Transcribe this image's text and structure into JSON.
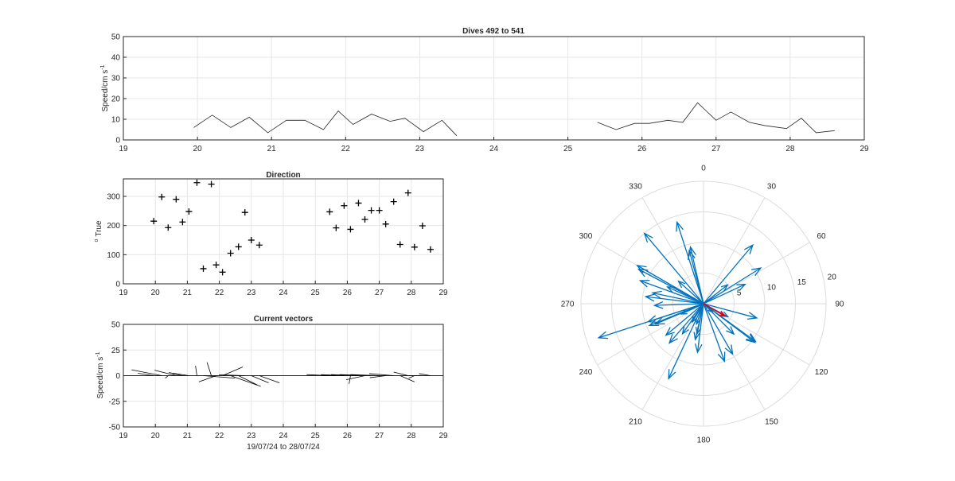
{
  "chart_data": [
    {
      "type": "line",
      "title": "Dives 492 to 541",
      "ylabel": "Speed/cm s",
      "ylabel_sup": "-1",
      "xlim": [
        19,
        29
      ],
      "ylim": [
        0,
        50
      ],
      "xticks": [
        19,
        20,
        21,
        22,
        23,
        24,
        25,
        26,
        27,
        28,
        29
      ],
      "yticks": [
        0,
        10,
        20,
        30,
        40,
        50
      ],
      "grid": true,
      "segments": [
        {
          "x": [
            19.95,
            20.2,
            20.45,
            20.7,
            20.95,
            21.2,
            21.45,
            21.7,
            21.9,
            22.1,
            22.35,
            22.6,
            22.8,
            23.05,
            23.3
          ],
          "y": [
            6,
            12,
            6,
            11,
            3.5,
            9.5,
            9.5,
            5,
            14,
            7.5,
            12.5,
            9,
            10.5,
            4,
            9.5
          ]
        },
        {
          "x": [
            23.3,
            23.5
          ],
          "y": [
            9.5,
            2
          ]
        },
        {
          "x": [
            25.4,
            25.65,
            25.9,
            26.1,
            26.35,
            26.55,
            26.75,
            27.0,
            27.2,
            27.45,
            27.65,
            27.95,
            28.15,
            28.35,
            28.6
          ],
          "y": [
            8.5,
            5,
            8,
            8,
            9.5,
            8.5,
            18,
            9.5,
            13.5,
            8.5,
            7,
            5.5,
            10.5,
            3.5,
            4.5
          ]
        }
      ]
    },
    {
      "type": "scatter",
      "title": "Direction",
      "ylabel": "True",
      "ylabel_sup": "o",
      "xlim": [
        19,
        29
      ],
      "ylim": [
        0,
        360
      ],
      "xticks": [
        19,
        20,
        21,
        22,
        23,
        24,
        25,
        26,
        27,
        28,
        29
      ],
      "yticks": [
        0,
        100,
        200,
        300
      ],
      "grid": true,
      "marker": "+",
      "x": [
        19.95,
        20.2,
        20.4,
        20.65,
        20.85,
        21.05,
        21.3,
        21.5,
        21.75,
        21.9,
        22.1,
        22.35,
        22.6,
        22.8,
        23.0,
        23.25,
        25.45,
        25.65,
        25.9,
        26.1,
        26.35,
        26.55,
        26.75,
        27.0,
        27.2,
        27.45,
        27.65,
        27.9,
        28.1,
        28.35,
        28.6
      ],
      "y": [
        215,
        298,
        193,
        290,
        212,
        248,
        347,
        52,
        342,
        65,
        40,
        105,
        127,
        245,
        150,
        133,
        247,
        192,
        268,
        187,
        277,
        221,
        252,
        252,
        205,
        282,
        135,
        312,
        126,
        199,
        118
      ]
    },
    {
      "type": "vector",
      "title": "Current vectors",
      "ylabel": "Speed/cm s",
      "ylabel_sup": "-1",
      "xlabel": "19/07/24 to 28/07/24",
      "xlim": [
        19,
        29
      ],
      "ylim": [
        -50,
        50
      ],
      "xticks": [
        19,
        20,
        21,
        22,
        23,
        24,
        25,
        26,
        27,
        28,
        29
      ],
      "yticks": [
        -50,
        -25,
        0,
        25,
        50
      ],
      "grid": true,
      "x": [
        19.95,
        20.2,
        20.4,
        20.65,
        20.85,
        21.05,
        21.3,
        21.5,
        21.75,
        21.9,
        22.1,
        22.35,
        22.6,
        22.8,
        23.0,
        23.25,
        25.45,
        25.65,
        25.9,
        26.1,
        26.35,
        26.55,
        26.75,
        27.0,
        27.2,
        27.45,
        27.65,
        27.9,
        28.1,
        28.35,
        28.6
      ],
      "u": [
        -5.5,
        -10.5,
        -1.0,
        -7.5,
        -3.5,
        -7.0,
        -0.5,
        11.0,
        -1.5,
        -6.0,
        7.0,
        10.5,
        6.5,
        -9.0,
        6.0,
        7.0,
        -8.0,
        -5.0,
        -8.0,
        -0.5,
        -9.5,
        -6.5,
        -11.0,
        -10.0,
        -5.5,
        -8.5,
        5.0,
        -5.0,
        -2.0,
        -5.0,
        -4.0
      ],
      "v": [
        2.3,
        5.7,
        -2.5,
        5.3,
        2.0,
        3.0,
        9.5,
        -2.4,
        13.0,
        -6.0,
        8.4,
        -10.5,
        -9.0,
        0.9,
        -7.0,
        -7.0,
        1.0,
        0.0,
        1.0,
        -8.0,
        1.0,
        -4.0,
        1.0,
        1.0,
        -2.0,
        2.0,
        -6.0,
        3.5,
        -2.5,
        0.0,
        2.0
      ]
    },
    {
      "type": "polar-compass",
      "title": "",
      "rlim": [
        0,
        20
      ],
      "rticks": [
        5,
        10,
        15,
        20
      ],
      "angle_ticks": [
        0,
        30,
        60,
        90,
        120,
        150,
        180,
        210,
        240,
        270,
        300,
        330
      ],
      "theta_zero": "top",
      "direction": "clockwise",
      "arrow_color": "#0072bd",
      "mean_color": "#d9041e",
      "speed": [
        6,
        12,
        6,
        11,
        3.5,
        9.5,
        9.5,
        5,
        14,
        7.5,
        12.5,
        9,
        10.5,
        4,
        9.5,
        2,
        8.5,
        5,
        8,
        8,
        9.5,
        8.5,
        18,
        9.5,
        13.5,
        8.5,
        7,
        5.5,
        10.5,
        3.5,
        4.5,
        11,
        12.5,
        9,
        15,
        8,
        10,
        6.5
      ],
      "direction_deg": [
        215,
        298,
        193,
        290,
        212,
        248,
        347,
        52,
        342,
        65,
        40,
        105,
        127,
        245,
        150,
        133,
        247,
        192,
        268,
        187,
        277,
        221,
        252,
        252,
        205,
        282,
        135,
        312,
        126,
        199,
        118,
        58,
        300,
        345,
        320,
        230,
        160,
        295
      ],
      "mean": {
        "speed": 4,
        "direction_deg": 120
      }
    }
  ]
}
